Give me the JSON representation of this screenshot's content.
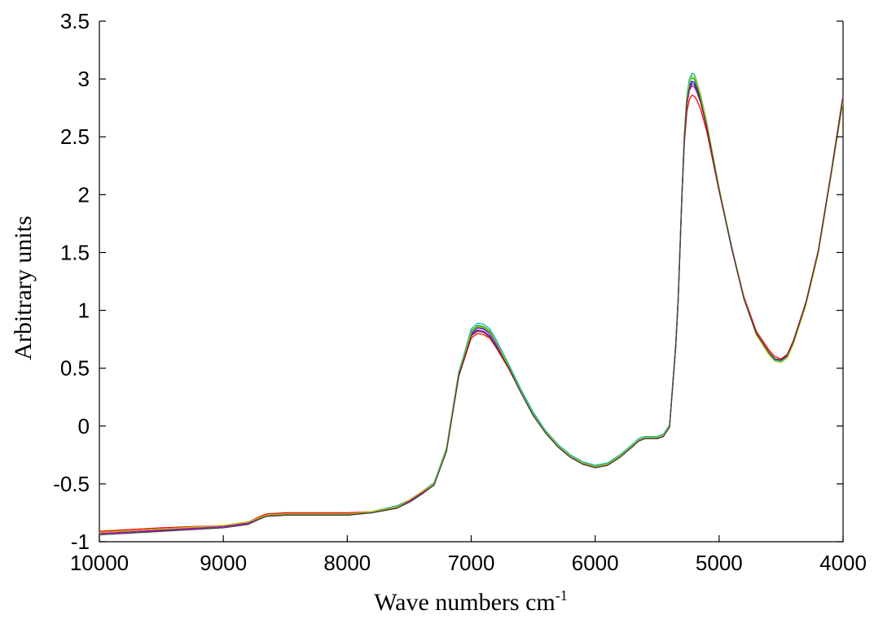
{
  "chart_data": {
    "type": "line",
    "title": "",
    "xlabel": "Wave numbers cm",
    "xlabel_superscript": "-1",
    "ylabel": "Arbitrary units",
    "xlim": [
      10000,
      4000
    ],
    "ylim": [
      -1,
      3.5
    ],
    "x_reversed": true,
    "grid": false,
    "legend": "none",
    "x_ticks": [
      {
        "value": 10000,
        "label": "10000"
      },
      {
        "value": 9000,
        "label": "9000"
      },
      {
        "value": 8000,
        "label": "8000"
      },
      {
        "value": 7000,
        "label": "7000"
      },
      {
        "value": 6000,
        "label": "6000"
      },
      {
        "value": 5000,
        "label": "5000"
      },
      {
        "value": 4000,
        "label": "4000"
      }
    ],
    "y_ticks": [
      {
        "value": -1,
        "label": "-1"
      },
      {
        "value": -0.5,
        "label": "-0.5"
      },
      {
        "value": 0,
        "label": "0"
      },
      {
        "value": 0.5,
        "label": "0.5"
      },
      {
        "value": 1,
        "label": "1"
      },
      {
        "value": 1.5,
        "label": "1.5"
      },
      {
        "value": 2,
        "label": "2"
      },
      {
        "value": 2.5,
        "label": "2.5"
      },
      {
        "value": 3,
        "label": "3"
      },
      {
        "value": 3.5,
        "label": "3.5"
      }
    ],
    "x": [
      10000,
      9500,
      9000,
      8800,
      8700,
      8650,
      8500,
      8000,
      7800,
      7600,
      7500,
      7400,
      7300,
      7200,
      7100,
      7000,
      6950,
      6900,
      6850,
      6800,
      6700,
      6600,
      6500,
      6400,
      6300,
      6200,
      6100,
      6000,
      5900,
      5800,
      5700,
      5650,
      5600,
      5500,
      5450,
      5400,
      5350,
      5330,
      5300,
      5280,
      5260,
      5240,
      5220,
      5200,
      5180,
      5150,
      5100,
      5000,
      4900,
      4800,
      4700,
      4600,
      4550,
      4500,
      4450,
      4400,
      4300,
      4200,
      4100,
      4000
    ],
    "series": [
      {
        "color": "#0000ff",
        "values": [
          -0.93,
          -0.9,
          -0.87,
          -0.84,
          -0.79,
          -0.77,
          -0.76,
          -0.76,
          -0.75,
          -0.7,
          -0.65,
          -0.58,
          -0.5,
          -0.2,
          0.45,
          0.8,
          0.85,
          0.84,
          0.8,
          0.72,
          0.52,
          0.3,
          0.1,
          -0.05,
          -0.17,
          -0.26,
          -0.32,
          -0.35,
          -0.33,
          -0.26,
          -0.17,
          -0.12,
          -0.1,
          -0.1,
          -0.08,
          0.0,
          0.7,
          1.1,
          2.0,
          2.5,
          2.8,
          2.94,
          2.98,
          2.97,
          2.92,
          2.82,
          2.6,
          2.05,
          1.55,
          1.1,
          0.8,
          0.64,
          0.58,
          0.57,
          0.61,
          0.72,
          1.05,
          1.5,
          2.15,
          2.82
        ]
      },
      {
        "color": "#00a000",
        "values": [
          -0.92,
          -0.89,
          -0.86,
          -0.83,
          -0.79,
          -0.77,
          -0.76,
          -0.76,
          -0.74,
          -0.7,
          -0.64,
          -0.57,
          -0.5,
          -0.19,
          0.47,
          0.82,
          0.87,
          0.86,
          0.82,
          0.73,
          0.53,
          0.31,
          0.11,
          -0.04,
          -0.16,
          -0.25,
          -0.31,
          -0.34,
          -0.32,
          -0.25,
          -0.16,
          -0.12,
          -0.1,
          -0.1,
          -0.08,
          0.0,
          0.72,
          1.12,
          2.02,
          2.52,
          2.84,
          2.97,
          3.01,
          3.0,
          2.95,
          2.85,
          2.62,
          2.06,
          1.56,
          1.11,
          0.8,
          0.64,
          0.58,
          0.57,
          0.61,
          0.73,
          1.06,
          1.51,
          2.16,
          2.84
        ]
      },
      {
        "color": "#ff0000",
        "values": [
          -0.91,
          -0.88,
          -0.86,
          -0.83,
          -0.78,
          -0.76,
          -0.75,
          -0.75,
          -0.74,
          -0.69,
          -0.64,
          -0.57,
          -0.49,
          -0.21,
          0.43,
          0.76,
          0.8,
          0.79,
          0.76,
          0.68,
          0.5,
          0.29,
          0.1,
          -0.05,
          -0.17,
          -0.26,
          -0.32,
          -0.35,
          -0.33,
          -0.26,
          -0.17,
          -0.12,
          -0.1,
          -0.1,
          -0.08,
          0.0,
          0.68,
          1.08,
          1.98,
          2.45,
          2.72,
          2.82,
          2.86,
          2.85,
          2.82,
          2.74,
          2.55,
          2.03,
          1.55,
          1.12,
          0.82,
          0.66,
          0.6,
          0.58,
          0.62,
          0.74,
          1.07,
          1.52,
          2.17,
          2.86
        ]
      },
      {
        "color": "#00bfbf",
        "values": [
          -0.92,
          -0.89,
          -0.86,
          -0.83,
          -0.79,
          -0.77,
          -0.76,
          -0.76,
          -0.74,
          -0.69,
          -0.64,
          -0.57,
          -0.49,
          -0.19,
          0.46,
          0.84,
          0.89,
          0.88,
          0.84,
          0.75,
          0.54,
          0.32,
          0.12,
          -0.04,
          -0.16,
          -0.25,
          -0.31,
          -0.34,
          -0.32,
          -0.25,
          -0.16,
          -0.11,
          -0.09,
          -0.09,
          -0.07,
          0.01,
          0.71,
          1.11,
          2.01,
          2.53,
          2.86,
          3.0,
          3.05,
          3.04,
          2.98,
          2.87,
          2.63,
          2.06,
          1.55,
          1.1,
          0.79,
          0.63,
          0.57,
          0.56,
          0.6,
          0.72,
          1.05,
          1.5,
          2.15,
          2.83
        ]
      },
      {
        "color": "#bf00bf",
        "values": [
          -0.93,
          -0.9,
          -0.87,
          -0.84,
          -0.8,
          -0.78,
          -0.77,
          -0.77,
          -0.75,
          -0.71,
          -0.65,
          -0.58,
          -0.51,
          -0.21,
          0.44,
          0.79,
          0.83,
          0.82,
          0.78,
          0.7,
          0.51,
          0.29,
          0.09,
          -0.06,
          -0.18,
          -0.27,
          -0.33,
          -0.36,
          -0.34,
          -0.27,
          -0.18,
          -0.13,
          -0.11,
          -0.11,
          -0.09,
          -0.01,
          0.69,
          1.09,
          1.99,
          2.48,
          2.78,
          2.9,
          2.94,
          2.93,
          2.89,
          2.8,
          2.58,
          2.04,
          1.54,
          1.1,
          0.8,
          0.64,
          0.58,
          0.57,
          0.61,
          0.73,
          1.06,
          1.51,
          2.16,
          2.85
        ]
      },
      {
        "color": "#bfbf00",
        "values": [
          -0.92,
          -0.89,
          -0.86,
          -0.83,
          -0.79,
          -0.77,
          -0.76,
          -0.76,
          -0.74,
          -0.7,
          -0.64,
          -0.57,
          -0.5,
          -0.2,
          0.45,
          0.81,
          0.86,
          0.85,
          0.81,
          0.73,
          0.52,
          0.3,
          0.1,
          -0.05,
          -0.17,
          -0.26,
          -0.32,
          -0.35,
          -0.33,
          -0.26,
          -0.17,
          -0.12,
          -0.1,
          -0.1,
          -0.08,
          0.0,
          0.7,
          1.1,
          2.0,
          2.51,
          2.83,
          2.96,
          3.03,
          3.02,
          2.97,
          2.86,
          2.62,
          2.06,
          1.56,
          1.11,
          0.79,
          0.62,
          0.56,
          0.55,
          0.59,
          0.71,
          1.04,
          1.49,
          2.14,
          2.8
        ]
      },
      {
        "color": "#404040",
        "values": [
          -0.94,
          -0.91,
          -0.88,
          -0.85,
          -0.8,
          -0.78,
          -0.77,
          -0.77,
          -0.75,
          -0.71,
          -0.66,
          -0.59,
          -0.51,
          -0.22,
          0.44,
          0.78,
          0.82,
          0.81,
          0.77,
          0.69,
          0.51,
          0.29,
          0.09,
          -0.06,
          -0.18,
          -0.27,
          -0.33,
          -0.36,
          -0.34,
          -0.27,
          -0.18,
          -0.13,
          -0.11,
          -0.11,
          -0.09,
          -0.01,
          0.69,
          1.09,
          1.99,
          2.49,
          2.8,
          2.92,
          2.96,
          2.95,
          2.91,
          2.81,
          2.59,
          2.04,
          1.55,
          1.1,
          0.8,
          0.64,
          0.58,
          0.57,
          0.61,
          0.73,
          1.06,
          1.51,
          2.16,
          2.84
        ]
      }
    ]
  }
}
